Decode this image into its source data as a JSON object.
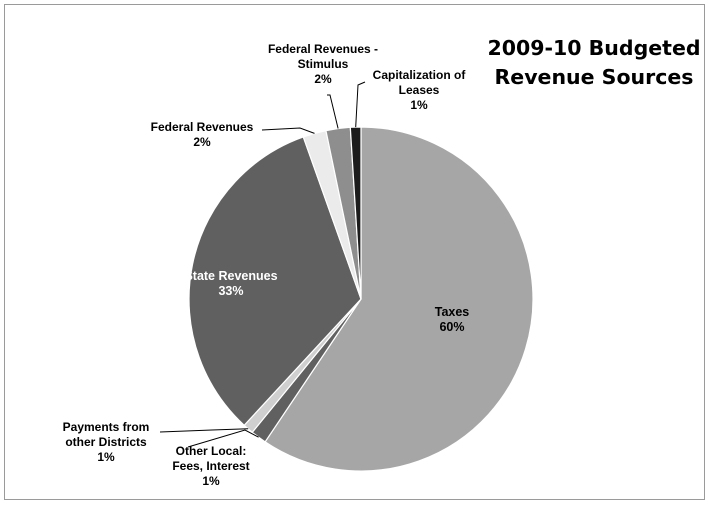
{
  "chart_data": {
    "type": "pie",
    "title_lines": [
      "2009-10 Budgeted",
      "Revenue Sources"
    ],
    "slices": [
      {
        "name": "Taxes",
        "value": 60,
        "value_label": "60%",
        "color": "#a6a6a6"
      },
      {
        "name": "Other Local: Fees, Interest",
        "value": 1.5,
        "value_label": "1%",
        "color": "#606060"
      },
      {
        "name": "Payments from other Districts",
        "value": 1,
        "value_label": "1%",
        "color": "#cfcfcf"
      },
      {
        "name": "State Revenues",
        "value": 33,
        "value_label": "33%",
        "color": "#606060"
      },
      {
        "name": "Federal Revenues",
        "value": 2.2,
        "value_label": "2%",
        "color": "#ebebeb"
      },
      {
        "name": "Federal Revenues - Stimulus",
        "value": 2.3,
        "value_label": "2%",
        "color": "#8e8e8e"
      },
      {
        "name": "Capitalization of Leases",
        "value": 1,
        "value_label": "1%",
        "color": "#1c1c1c"
      }
    ],
    "labels": [
      {
        "lines": [
          "Taxes",
          "60%"
        ]
      },
      {
        "lines": [
          "Other Local:",
          "Fees, Interest",
          "1%"
        ]
      },
      {
        "lines": [
          "Payments from",
          "other Districts",
          "1%"
        ]
      },
      {
        "lines": [
          "State Revenues",
          "33%"
        ]
      },
      {
        "lines": [
          "Federal Revenues",
          "2%"
        ]
      },
      {
        "lines": [
          "Federal Revenues -",
          "Stimulus",
          "2%"
        ]
      },
      {
        "lines": [
          "Capitalization of",
          "Leases",
          "1%"
        ]
      }
    ],
    "legend": "none"
  }
}
